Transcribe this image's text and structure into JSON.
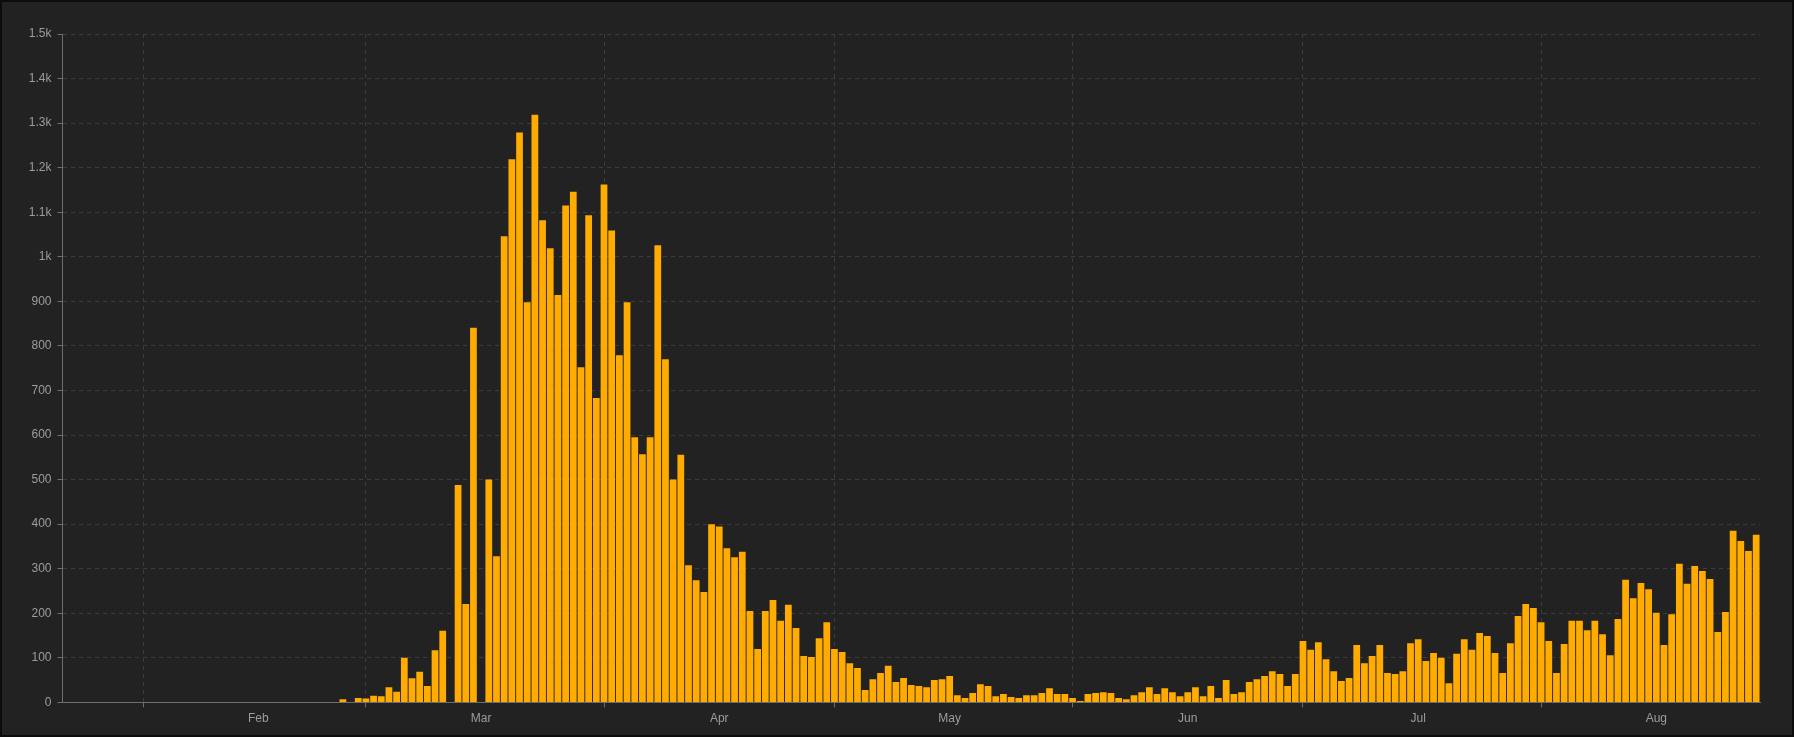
{
  "chart_data": {
    "type": "bar",
    "color": "#ffab00",
    "x": [
      "--01-22",
      "--01-23",
      "--01-24",
      "--01-25",
      "--01-26",
      "--01-27",
      "--01-28",
      "--01-29",
      "--01-30",
      "--01-31",
      "--02-01",
      "--02-02",
      "--02-03",
      "--02-04",
      "--02-05",
      "--02-06",
      "--02-07",
      "--02-08",
      "--02-09",
      "--02-10",
      "--02-11",
      "--02-12",
      "--02-13",
      "--02-14",
      "--02-15",
      "--02-16",
      "--02-17",
      "--02-18",
      "--02-19",
      "--02-20",
      "--02-21",
      "--02-22",
      "--02-23",
      "--02-24",
      "--02-25",
      "--02-26",
      "--02-27",
      "--02-28",
      "--02-29",
      "--03-01",
      "--03-02",
      "--03-03",
      "--03-04",
      "--03-05",
      "--03-06",
      "--03-07",
      "--03-08",
      "--03-09",
      "--03-10",
      "--03-11",
      "--03-12",
      "--03-13",
      "--03-14",
      "--03-15",
      "--03-16",
      "--03-17",
      "--03-18",
      "--03-19",
      "--03-20",
      "--03-21",
      "--03-22",
      "--03-23",
      "--03-24",
      "--03-25",
      "--03-26",
      "--03-27",
      "--03-28",
      "--03-29",
      "--03-30",
      "--03-31",
      "--04-01",
      "--04-02",
      "--04-03",
      "--04-04",
      "--04-05",
      "--04-06",
      "--04-07",
      "--04-08",
      "--04-09",
      "--04-10",
      "--04-11",
      "--04-12",
      "--04-13",
      "--04-14",
      "--04-15",
      "--04-16",
      "--04-17",
      "--04-18",
      "--04-19",
      "--04-20",
      "--04-21",
      "--04-22",
      "--04-23",
      "--04-24",
      "--04-25",
      "--04-26",
      "--04-27",
      "--04-28",
      "--04-29",
      "--04-30",
      "--05-01",
      "--05-02",
      "--05-03",
      "--05-04",
      "--05-05",
      "--05-06",
      "--05-07",
      "--05-08",
      "--05-09",
      "--05-10",
      "--05-11",
      "--05-12",
      "--05-13",
      "--05-14",
      "--05-15",
      "--05-16",
      "--05-17",
      "--05-18",
      "--05-19",
      "--05-20",
      "--05-21",
      "--05-22",
      "--05-23",
      "--05-24",
      "--05-25",
      "--05-26",
      "--05-27",
      "--05-28",
      "--05-29",
      "--05-30",
      "--05-31",
      "--06-01",
      "--06-02",
      "--06-03",
      "--06-04",
      "--06-05",
      "--06-06",
      "--06-07",
      "--06-08",
      "--06-09",
      "--06-10",
      "--06-11",
      "--06-12",
      "--06-13",
      "--06-14",
      "--06-15",
      "--06-16",
      "--06-17",
      "--06-18",
      "--06-19",
      "--06-20",
      "--06-21",
      "--06-22",
      "--06-23",
      "--06-24",
      "--06-25",
      "--06-26",
      "--06-27",
      "--06-28",
      "--06-29",
      "--06-30",
      "--07-01",
      "--07-02",
      "--07-03",
      "--07-04",
      "--07-05",
      "--07-06",
      "--07-07",
      "--07-08",
      "--07-09",
      "--07-10",
      "--07-11",
      "--07-12",
      "--07-13",
      "--07-14",
      "--07-15",
      "--07-16",
      "--07-17",
      "--07-18",
      "--07-19",
      "--07-20",
      "--07-21",
      "--07-22",
      "--07-23",
      "--07-24",
      "--07-25",
      "--07-26",
      "--07-27",
      "--07-28",
      "--07-29",
      "--07-30",
      "--07-31",
      "--08-01",
      "--08-02",
      "--08-03",
      "--08-04",
      "--08-05",
      "--08-06",
      "--08-07",
      "--08-08",
      "--08-09",
      "--08-10",
      "--08-11",
      "--08-12",
      "--08-13",
      "--08-14",
      "--08-15",
      "--08-16",
      "--08-17",
      "--08-18",
      "--08-19",
      "--08-20",
      "--08-21",
      "--08-22",
      "--08-23",
      "--08-24",
      "--08-25",
      "--08-26",
      "--08-27",
      "--08-28",
      "--08-29"
    ],
    "values": [
      0,
      0,
      0,
      0,
      0,
      0,
      0,
      0,
      0,
      0,
      0,
      0,
      0,
      0,
      0,
      0,
      0,
      0,
      0,
      0,
      0,
      0,
      0,
      0,
      0,
      0,
      0,
      0,
      0,
      0,
      0,
      0,
      0,
      0,
      0,
      0,
      7,
      0,
      10,
      9,
      15,
      14,
      34,
      24,
      100,
      54,
      69,
      37,
      117,
      161,
      0,
      488,
      221,
      841,
      0,
      500,
      328,
      1046,
      1219,
      1279,
      898,
      1319,
      1082,
      1019,
      914,
      1115,
      1146,
      752,
      1093,
      683,
      1162,
      1059,
      779,
      898,
      595,
      557,
      595,
      1026,
      770,
      500,
      556,
      308,
      274,
      248,
      400,
      395,
      346,
      326,
      338,
      205,
      120,
      205,
      230,
      183,
      219,
      167,
      104,
      102,
      144,
      180,
      120,
      113,
      88,
      77,
      28,
      52,
      66,
      82,
      46,
      55,
      39,
      37,
      34,
      50,
      52,
      59,
      16,
      10,
      21,
      41,
      37,
      14,
      19,
      12,
      10,
      16,
      16,
      21,
      32,
      19,
      19,
      10,
      3,
      19,
      21,
      23,
      21,
      10,
      7,
      16,
      23,
      34,
      19,
      32,
      23,
      14,
      23,
      34,
      14,
      37,
      10,
      50,
      19,
      23,
      46,
      52,
      59,
      70,
      64,
      37,
      64,
      138,
      118,
      135,
      97,
      70,
      48,
      55,
      129,
      88,
      104,
      129,
      66,
      64,
      70,
      133,
      142,
      93,
      111,
      100,
      43,
      109,
      142,
      118,
      156,
      149,
      111,
      66,
      133,
      194,
      221,
      212,
      180,
      138,
      66,
      131,
      183,
      183,
      162,
      183,
      153,
      106,
      187,
      275,
      234,
      268,
      254,
      201,
      129,
      198,
      311,
      266,
      306,
      295,
      277,
      158,
      203,
      385,
      362,
      340,
      376
    ],
    "xlim": [
      "--01-21T12:00",
      "--08-29T12:00"
    ],
    "xticks": [
      {
        "value": "--02-01",
        "label": null
      },
      {
        "value": "--02-16",
        "label": "Feb"
      },
      {
        "value": "--03-01",
        "label": null
      },
      {
        "value": "--03-16",
        "label": "Mar"
      },
      {
        "value": "--04-01",
        "label": null
      },
      {
        "value": "--04-16",
        "label": "Apr"
      },
      {
        "value": "--05-01",
        "label": null
      },
      {
        "value": "--05-16",
        "label": "May"
      },
      {
        "value": "--06-01",
        "label": null
      },
      {
        "value": "--06-16",
        "label": "Jun"
      },
      {
        "value": "--07-01",
        "label": null
      },
      {
        "value": "--07-16",
        "label": "Jul"
      },
      {
        "value": "--08-01",
        "label": null
      },
      {
        "value": "--08-16",
        "label": "Aug"
      }
    ],
    "ylim": [
      0,
      1500
    ],
    "yticks": [
      0,
      100,
      200,
      300,
      400,
      500,
      600,
      700,
      800,
      900,
      {
        "value": 1000,
        "label": "1k"
      },
      {
        "value": 1100,
        "label": "1.1k"
      },
      {
        "value": 1200,
        "label": "1.2k"
      },
      {
        "value": 1300,
        "label": "1.3k"
      },
      {
        "value": 1400,
        "label": "1.4k"
      },
      {
        "value": 1500,
        "label": "1.5k"
      }
    ],
    "grid": true
  }
}
